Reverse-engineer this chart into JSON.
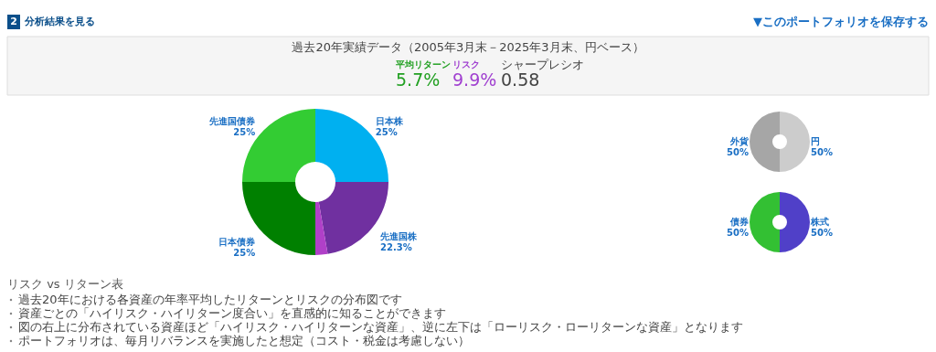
{
  "chart_data": [
    {
      "type": "other",
      "title": "分析結果を見る",
      "annotations": [
        "2",
        "▼このポートフォリオを保存する",
        "過去20年実績データ（2005年3月末－2025年3月末、円ベース）",
        "平均リターン",
        "5.7%",
        "リスク",
        "9.9%",
        "シャープレシオ",
        "0.58"
      ]
    },
    {
      "type": "donut",
      "categories": [
        "日本株",
        "先進国株",
        null,
        "日本債券",
        "先進国債券"
      ],
      "values": [
        25,
        22.3,
        2.7,
        25,
        25
      ],
      "value_labels": [
        "25%",
        "22.3%",
        null,
        "25%",
        "25%"
      ],
      "colors": [
        "#00b0f0",
        "#7030a0",
        "#b040c8",
        "#008000",
        "#33cc33"
      ]
    },
    {
      "type": "donut",
      "categories": [
        "円",
        "外貨"
      ],
      "values": [
        50,
        50
      ],
      "value_labels": [
        "50%",
        "50%"
      ],
      "colors": [
        "#cccccc",
        "#a6a6a6"
      ]
    },
    {
      "type": "donut",
      "categories": [
        "株式",
        "債券"
      ],
      "values": [
        50,
        50
      ],
      "value_labels": [
        "50%",
        "50%"
      ],
      "colors": [
        "#5040c8",
        "#33c033"
      ]
    },
    {
      "type": "other",
      "title": "リスク vs リターン表",
      "annotations": [
        "過去20年における各資産の年率平均したリターンとリスクの分布図です",
        "資産ごとの「ハイリスク・ハイリターン度合い」を直感的に知ることができます",
        "図の右上に分布されている資産ほど「ハイリスク・ハイリターンな資産」、逆に左下は「ローリスク・ローリターンな資産」となります",
        "ポートフォリオは、毎月リバランスを実施したと想定（コスト・税金は考慮しない）"
      ]
    }
  ]
}
